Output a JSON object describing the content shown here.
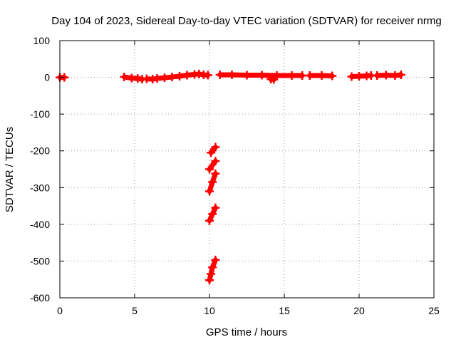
{
  "chart_data": {
    "type": "scatter",
    "title": "Day 104 of 2023, Sidereal Day-to-day VTEC variation (SDTVAR) for receiver nrmg",
    "xlabel": "GPS time / hours",
    "ylabel": "SDTVAR / TECUs",
    "xlim": [
      0,
      25
    ],
    "ylim": [
      -600,
      100
    ],
    "xticks": [
      0,
      5,
      10,
      15,
      20,
      25
    ],
    "yticks": [
      100,
      0,
      -100,
      -200,
      -300,
      -400,
      -500,
      -600
    ],
    "grid": true,
    "series": [
      {
        "name": "SDTVAR",
        "color": "#ff0000",
        "segments": [
          [
            [
              0.0,
              0
            ],
            [
              0.3,
              0
            ]
          ],
          [
            [
              4.3,
              1
            ],
            [
              4.8,
              -2
            ],
            [
              5.2,
              -3
            ],
            [
              5.5,
              -5
            ]
          ],
          [
            [
              5.8,
              -4
            ],
            [
              6.2,
              -5
            ],
            [
              6.5,
              -3
            ],
            [
              7.0,
              -1
            ],
            [
              7.5,
              1
            ],
            [
              8.0,
              3
            ],
            [
              8.5,
              6
            ],
            [
              9.0,
              8
            ],
            [
              9.3,
              9
            ],
            [
              9.6,
              7
            ],
            [
              9.9,
              6
            ]
          ],
          [
            [
              10.7,
              7
            ],
            [
              11.5,
              7
            ],
            [
              12.5,
              6
            ],
            [
              13.5,
              6
            ],
            [
              14.5,
              5
            ],
            [
              15.5,
              5
            ],
            [
              16.2,
              5
            ]
          ],
          [
            [
              14.1,
              -5
            ],
            [
              14.3,
              -6
            ]
          ],
          [
            [
              16.7,
              5
            ],
            [
              17.5,
              5
            ],
            [
              18.2,
              4
            ]
          ],
          [
            [
              19.5,
              2
            ],
            [
              20.0,
              3
            ],
            [
              20.5,
              4
            ],
            [
              20.8,
              5
            ]
          ],
          [
            [
              21.2,
              5
            ],
            [
              21.8,
              6
            ],
            [
              22.4,
              5
            ],
            [
              22.8,
              7
            ]
          ],
          [
            [
              10.1,
              -205
            ],
            [
              10.4,
              -190
            ]
          ],
          [
            [
              10.0,
              -250
            ],
            [
              10.4,
              -228
            ]
          ],
          [
            [
              10.0,
              -310
            ],
            [
              10.2,
              -285
            ],
            [
              10.4,
              -262
            ]
          ],
          [
            [
              10.0,
              -390
            ],
            [
              10.2,
              -372
            ],
            [
              10.4,
              -355
            ]
          ],
          [
            [
              10.0,
              -552
            ],
            [
              10.1,
              -535
            ],
            [
              10.2,
              -517
            ],
            [
              10.4,
              -497
            ]
          ]
        ]
      }
    ]
  }
}
